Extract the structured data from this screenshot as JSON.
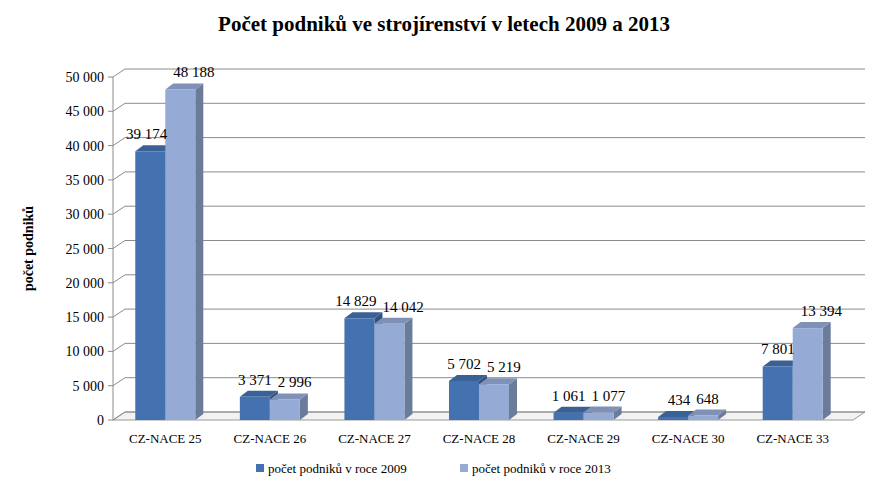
{
  "chart_data": {
    "type": "bar",
    "title": "Počet podniků ve strojírenství v letech 2009 a 2013",
    "y_label": "počet podniků",
    "categories": [
      "CZ-NACE 25",
      "CZ-NACE 26",
      "CZ-NACE 27",
      "CZ-NACE 28",
      "CZ-NACE 29",
      "CZ-NACE 30",
      "CZ-NACE 33"
    ],
    "series": [
      {
        "name": "počet podniků v roce 2009",
        "color": "#4472b0",
        "values": [
          39174,
          3371,
          14829,
          5702,
          1061,
          434,
          7801
        ],
        "value_labels": [
          "39 174",
          "3 371",
          "14 829",
          "5 702",
          "1 061",
          "434",
          "7 801"
        ]
      },
      {
        "name": "počet podniků v roce 2013",
        "color": "#95abd6",
        "values": [
          48188,
          2996,
          14042,
          5219,
          1077,
          648,
          13394
        ],
        "value_labels": [
          "48 188",
          "2 996",
          "14 042",
          "5 219",
          "1 077",
          "648",
          "13 394"
        ]
      }
    ],
    "ylim": [
      0,
      50000
    ],
    "yticks": [
      0,
      {
        "value": 5000,
        "label": "5 000"
      },
      {
        "value": 10000,
        "label": "10 000"
      },
      {
        "value": 15000,
        "label": "15 000"
      },
      {
        "value": 20000,
        "label": "20 000"
      },
      {
        "value": 25000,
        "label": "25 000"
      },
      {
        "value": 30000,
        "label": "30 000"
      },
      {
        "value": 35000,
        "label": "35 000"
      },
      {
        "value": 40000,
        "label": "40 000"
      },
      {
        "value": 45000,
        "label": "45 000"
      },
      {
        "value": 50000,
        "label": "50 000"
      }
    ],
    "grid": true,
    "legend": "bottom",
    "data_labels": true
  }
}
